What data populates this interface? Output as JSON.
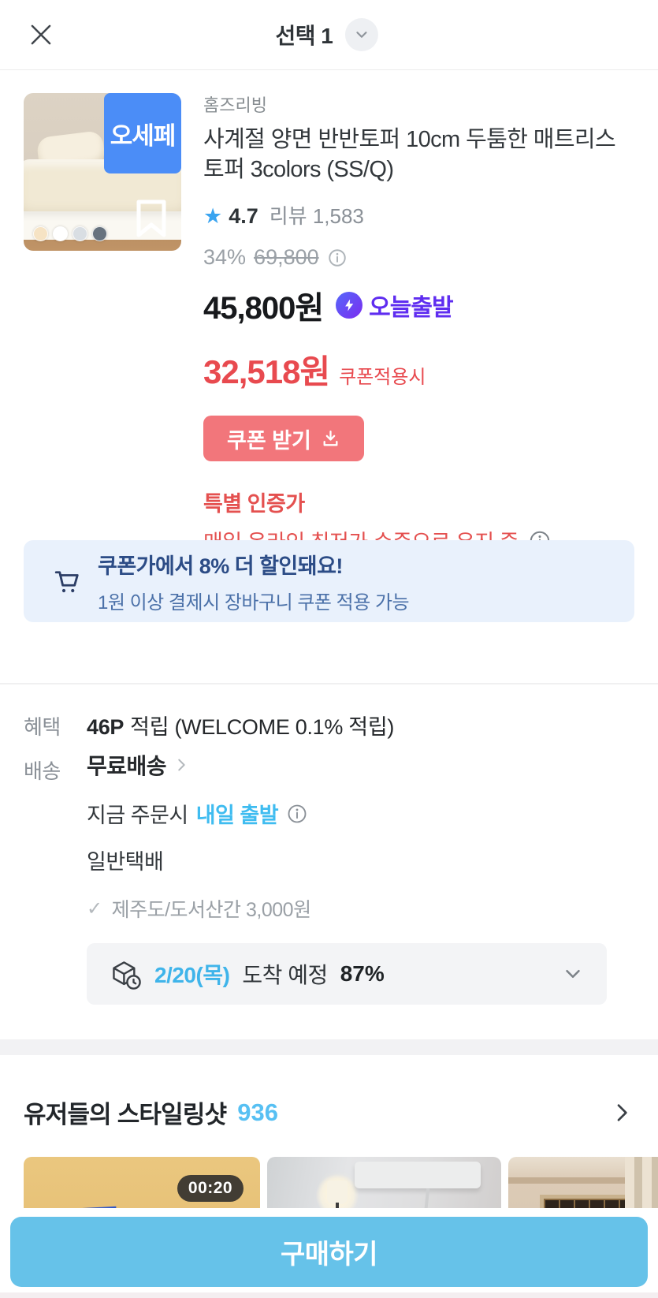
{
  "header": {
    "title": "선택 1"
  },
  "product": {
    "brand": "홈즈리빙",
    "title": "사계절 양면 반반토퍼 10cm 두툼한 매트리스 토퍼 3colors (SS/Q)",
    "image_badge": "오세페",
    "rating": "4.7",
    "review_count_label": "리뷰 1,583",
    "discount_percent": "34%",
    "original_price": "69,800",
    "price": "45,800원",
    "today_ship_label": "오늘출발",
    "coupon_price": "32,518원",
    "coupon_price_note": "쿠폰적용시",
    "coupon_button_label": "쿠폰 받기",
    "special_price_title": "특별 인증가",
    "special_price_desc": "매일 온라인 최저가 수준으로 유지 중",
    "color_swatches": [
      "#f6e3c4",
      "#ffffff",
      "#d9dee3",
      "#67727e"
    ]
  },
  "cart_banner": {
    "title": "쿠폰가에서 8% 더 할인돼요!",
    "subtitle": "1원 이상 결제시 장바구니 쿠폰 적용 가능"
  },
  "benefit": {
    "label": "혜택",
    "points": "46P",
    "desc": "적립 (WELCOME 0.1% 적립)"
  },
  "shipping": {
    "label": "배송",
    "free_label": "무료배송",
    "order_now_prefix": "지금 주문시",
    "order_now_highlight": "내일 출발",
    "courier": "일반택배",
    "island_fee": "제주도/도서산간 3,000원",
    "check_mark": "✓",
    "eta_date": "2/20(목)",
    "eta_label": "도착 예정",
    "eta_percent": "87%"
  },
  "styling_shots": {
    "title": "유저들의 스타일링샷",
    "count": "936",
    "video_duration": "00:20"
  },
  "footer": {
    "buy_button_label": "구매하기"
  },
  "colors": {
    "accent_skyblue": "#3fbcf0",
    "price_red": "#e84a4f",
    "today_purple": "#5f2df0",
    "coupon_button": "#f2767b",
    "buy_button": "#66c2e9",
    "image_badge_blue": "#4b8df7",
    "banner_bg": "#e9f1fc"
  }
}
